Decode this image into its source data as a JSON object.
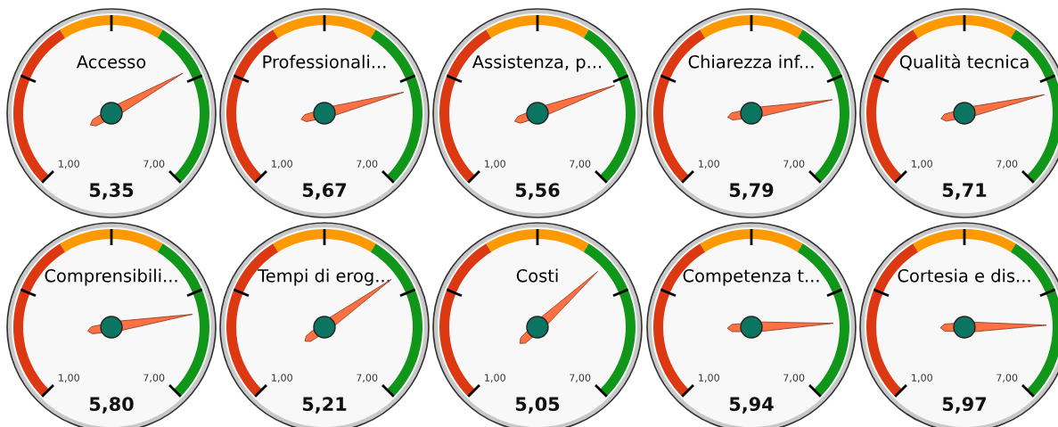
{
  "chart_data": [
    {
      "type": "other",
      "title": "Accesso",
      "values": [
        5.35
      ],
      "value_labels": [
        "5,35"
      ],
      "annotations": [
        "1,00",
        "7,00"
      ]
    },
    {
      "type": "other",
      "title": "Professionali...",
      "values": [
        5.67
      ],
      "value_labels": [
        "5,67"
      ],
      "annotations": [
        "1,00",
        "7,00"
      ]
    },
    {
      "type": "other",
      "title": "Assistenza, p...",
      "values": [
        5.56
      ],
      "value_labels": [
        "5,56"
      ],
      "annotations": [
        "1,00",
        "7,00"
      ]
    },
    {
      "type": "other",
      "title": "Chiarezza inf...",
      "values": [
        5.79
      ],
      "value_labels": [
        "5,79"
      ],
      "annotations": [
        "1,00",
        "7,00"
      ]
    },
    {
      "type": "other",
      "title": "Qualità tecnica",
      "values": [
        5.71
      ],
      "value_labels": [
        "5,71"
      ],
      "annotations": [
        "1,00",
        "7,00"
      ]
    },
    {
      "type": "other",
      "title": "Comprensibili...",
      "values": [
        5.8
      ],
      "value_labels": [
        "5,80"
      ],
      "annotations": [
        "1,00",
        "7,00"
      ]
    },
    {
      "type": "other",
      "title": "Tempi di erog...",
      "values": [
        5.21
      ],
      "value_labels": [
        "5,21"
      ],
      "annotations": [
        "1,00",
        "7,00"
      ]
    },
    {
      "type": "other",
      "title": "Costi",
      "values": [
        5.05
      ],
      "value_labels": [
        "5,05"
      ],
      "annotations": [
        "1,00",
        "7,00"
      ]
    },
    {
      "type": "other",
      "title": "Competenza t...",
      "values": [
        5.94
      ],
      "value_labels": [
        "5,94"
      ],
      "annotations": [
        "1,00",
        "7,00"
      ]
    },
    {
      "type": "other",
      "title": "Cortesia e dis...",
      "values": [
        5.97
      ],
      "value_labels": [
        "5,97"
      ],
      "annotations": [
        "1,00",
        "7,00"
      ]
    }
  ]
}
